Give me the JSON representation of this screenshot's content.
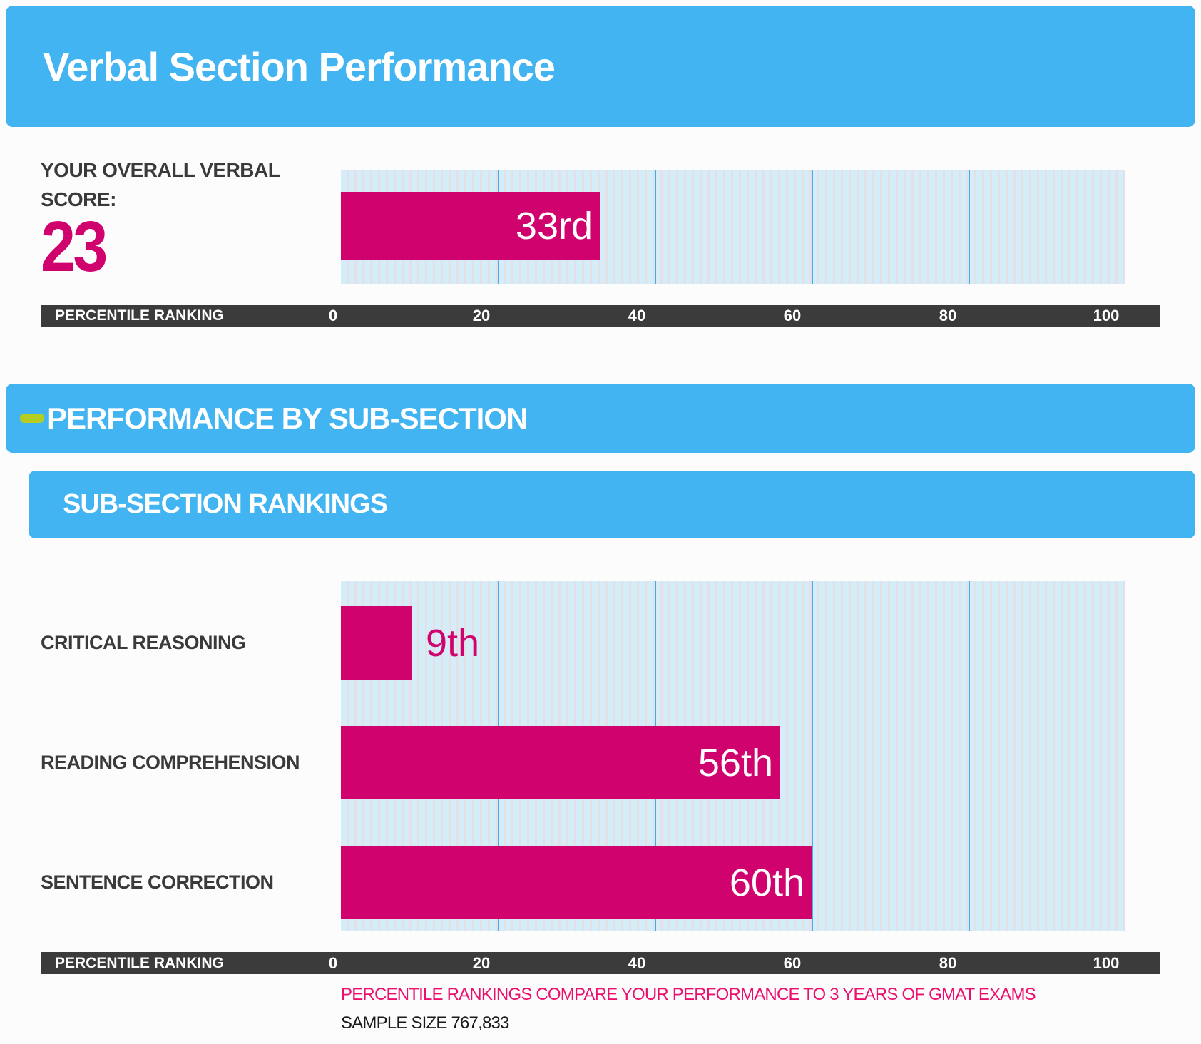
{
  "header": {
    "title": "Verbal Section Performance"
  },
  "overall": {
    "label_line1": "YOUR OVERALL VERBAL",
    "label_line2": "SCORE:",
    "score": "23"
  },
  "subsection": {
    "header": "PERFORMANCE BY SUB-SECTION",
    "rankings_header": "SUB-SECTION RANKINGS"
  },
  "footer": {
    "note": "PERCENTILE RANKINGS COMPARE YOUR PERFORMANCE TO 3 YEARS OF GMAT EXAMS",
    "sample_size": "SAMPLE SIZE 767,833"
  },
  "colors": {
    "header_blue": "#41b4f1",
    "bar_magenta": "#d0026e",
    "lime_dash": "#b3cd20",
    "axis_dark": "#3b3b3b",
    "plot_background": "#d5edf8",
    "plot_stripe": "#e3e1e6",
    "gridline_blue": "#3faeec",
    "footer_pink": "#ed0f6e"
  },
  "chart_data": [
    {
      "type": "bar",
      "orientation": "horizontal",
      "title": "Verbal Section Performance",
      "categories": [
        "OVERALL VERBAL SCORE 23"
      ],
      "values": [
        33
      ],
      "value_labels": [
        "33rd"
      ],
      "xlabel": "PERCENTILE RANKING",
      "xlim": [
        0,
        100
      ],
      "xticks": [
        "0",
        "20",
        "40",
        "60",
        "80",
        "100"
      ],
      "gridlines_at": [
        20,
        40,
        60,
        80
      ],
      "grid": true,
      "legend": false
    },
    {
      "type": "bar",
      "orientation": "horizontal",
      "title": "SUB-SECTION RANKINGS",
      "categories": [
        "CRITICAL REASONING",
        "READING COMPREHENSION",
        "SENTENCE CORRECTION"
      ],
      "values": [
        9,
        56,
        60
      ],
      "value_labels": [
        "9th",
        "56th",
        "60th"
      ],
      "xlabel": "PERCENTILE RANKING",
      "xlim": [
        0,
        100
      ],
      "xticks": [
        "0",
        "20",
        "40",
        "60",
        "80",
        "100"
      ],
      "gridlines_at": [
        20,
        40,
        60,
        80
      ],
      "grid": true,
      "legend": false
    }
  ]
}
